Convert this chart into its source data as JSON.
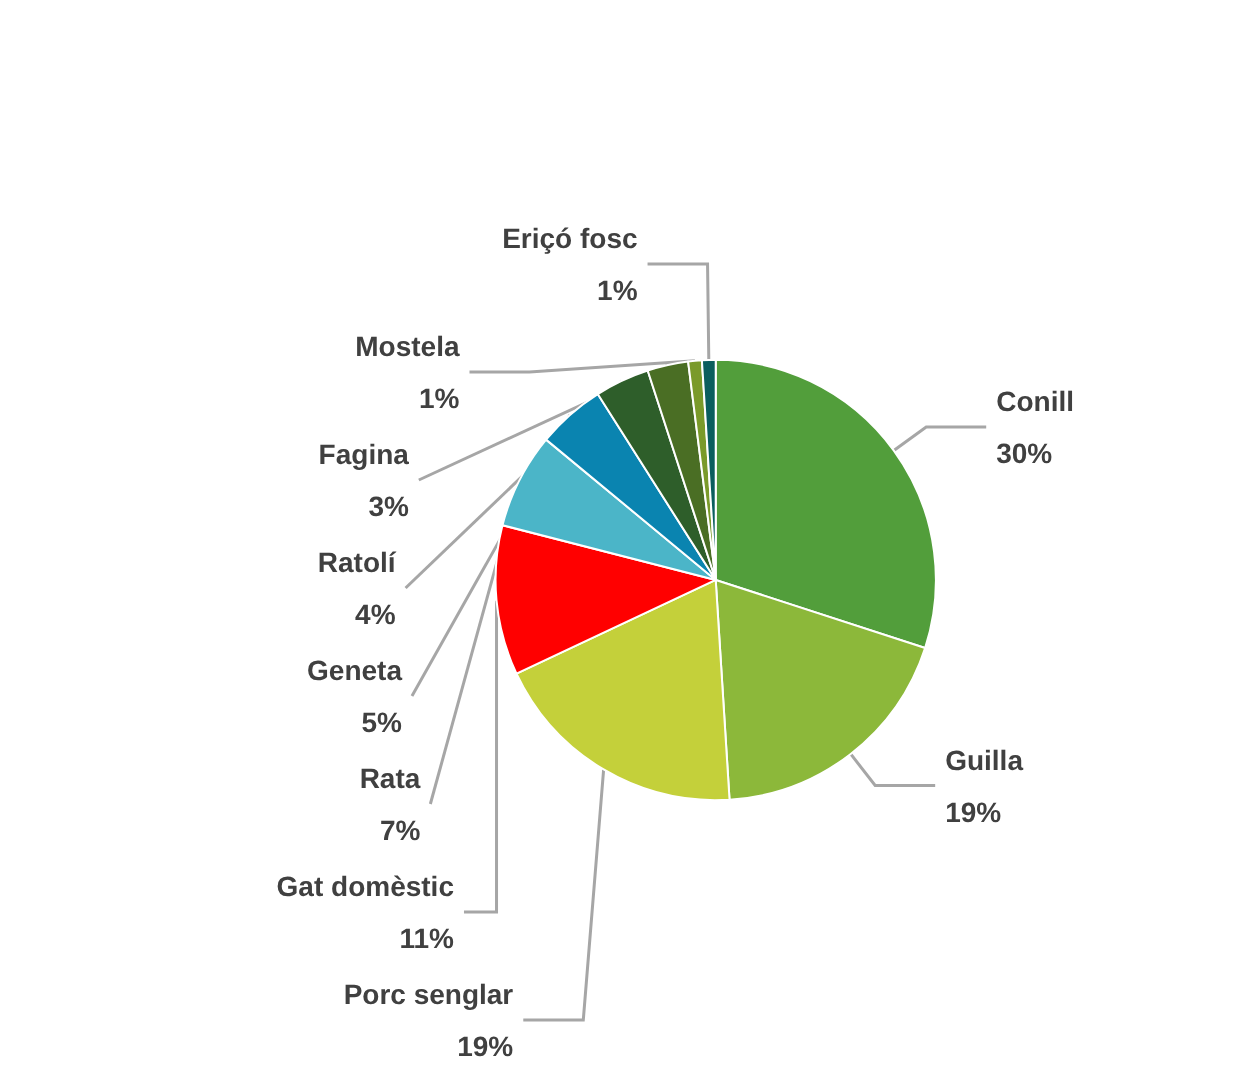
{
  "chart_data": {
    "type": "pie",
    "categories": [
      "Conill",
      "Guilla",
      "Porc senglar",
      "Gat domèstic",
      "Rata",
      "Geneta",
      "Ratolí",
      "Fagina",
      "Mostela",
      "Eriçó fosc"
    ],
    "values": [
      30,
      19,
      19,
      11,
      7,
      5,
      4,
      3,
      1,
      1
    ],
    "value_labels": [
      "30%",
      "19%",
      "19%",
      "11%",
      "7%",
      "5%",
      "4%",
      "3%",
      "1%",
      "1%"
    ],
    "colors": [
      "#529e3b",
      "#8cb83a",
      "#c4d03a",
      "#ff0000",
      "#4bb5c8",
      "#0a84b0",
      "#2e5e2a",
      "#4a6e24",
      "#7a9a2a",
      "#0a5e5e"
    ],
    "legend": false
  }
}
